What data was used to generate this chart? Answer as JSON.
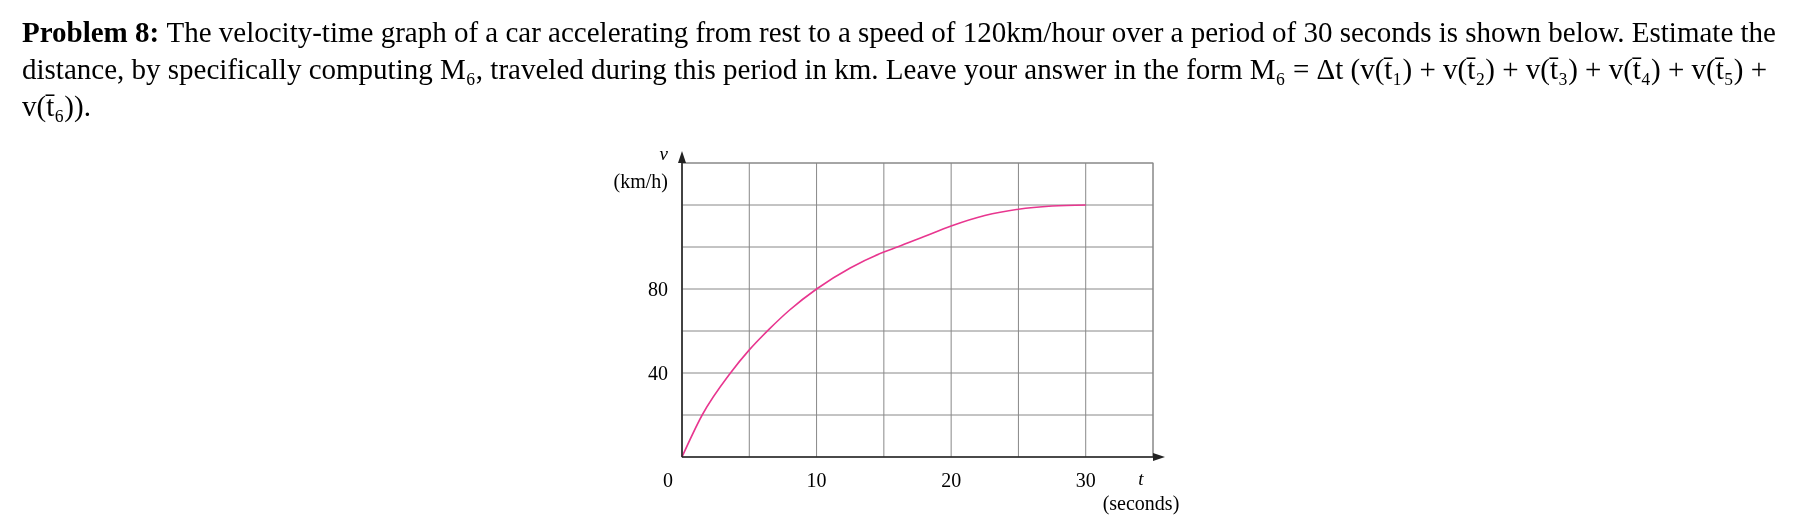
{
  "chart_data": {
    "type": "line",
    "title": "Problem 8:",
    "subtitle": "The velocity-time graph of a car accelerating from rest to a speed of 120km/hour over a period of 30 seconds is shown below. Estimate the distance, by specifically computing M₆, traveled during this period in km. Leave your answer in the form M₆ = Δt (v(t̄₁) + v(t̄₂) + v(t̄₃) + v(t̄₄) + v(t̄₅) + v(t̄₆)).",
    "xlabel": "t (seconds)",
    "ylabel": "v (km/h)",
    "x": [
      0,
      1.5,
      3.6,
      5,
      6.5,
      8,
      10,
      12.5,
      15,
      16,
      18,
      20,
      22.5,
      25,
      27.5,
      30
    ],
    "series": [
      {
        "color": "#e8368f",
        "values": [
          0,
          20,
          40,
          51,
          61,
          70,
          80,
          90,
          97.6,
          100,
          105,
          110,
          115,
          118,
          119.5,
          120
        ]
      }
    ],
    "xlim": [
      0,
      35
    ],
    "ylim": [
      0,
      140
    ],
    "xticks": [
      0,
      {
        "value": 5,
        "label": null
      },
      10,
      {
        "value": 15,
        "label": null
      },
      20,
      {
        "value": 25,
        "label": null
      },
      30,
      {
        "value": 35,
        "label": null
      }
    ],
    "yticks": [
      {
        "value": 20,
        "label": null
      },
      40,
      {
        "value": 60,
        "label": null
      },
      80,
      {
        "value": 100,
        "label": null
      },
      {
        "value": 120,
        "label": null
      },
      {
        "value": 140,
        "label": null
      }
    ],
    "grid": true,
    "marker": "none",
    "line_style": "solid"
  }
}
